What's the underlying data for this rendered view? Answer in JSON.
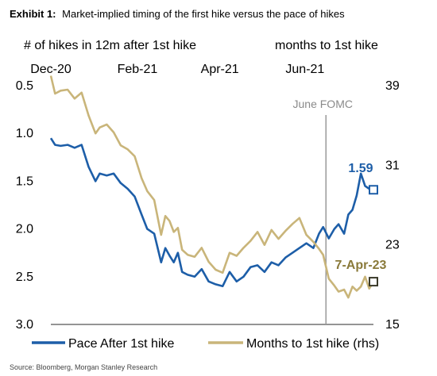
{
  "exhibit_label": "Exhibit 1:",
  "title": "Market-implied timing of the first hike versus the pace of hikes",
  "left_axis_title": "# of hikes in 12m after 1st hike",
  "right_axis_title": "months to 1st hike",
  "source": "Source: Bloomberg, Morgan Stanley Research",
  "chart_data": {
    "type": "line",
    "x_ticks": [
      "Dec-20",
      "Feb-21",
      "Apr-21",
      "Jun-21"
    ],
    "x_tick_dates": [
      "2020-12-01",
      "2021-02-01",
      "2021-04-01",
      "2021-06-01"
    ],
    "xlim": [
      "2020-12-01",
      "2021-07-20"
    ],
    "y_left": {
      "ticks": [
        "0.5",
        "1.0",
        "1.5",
        "2.0",
        "2.5",
        "3.0"
      ],
      "range": [
        0.5,
        3.0
      ],
      "inverted": true
    },
    "y_right": {
      "ticks": [
        "39",
        "31",
        "23",
        "15"
      ],
      "range": [
        15,
        39
      ]
    },
    "vline": {
      "date": "2021-06-16",
      "label": "June FOMC"
    },
    "grid": false,
    "legend_position": "bottom",
    "series": [
      {
        "name": "Pace After 1st hike",
        "axis": "left",
        "color": "#1d5ea8",
        "end_label": "1.59",
        "x": [
          "2020-12-01",
          "2020-12-04",
          "2020-12-08",
          "2020-12-13",
          "2020-12-18",
          "2020-12-23",
          "2020-12-28",
          "2021-01-02",
          "2021-01-05",
          "2021-01-10",
          "2021-01-15",
          "2021-01-20",
          "2021-01-25",
          "2021-01-30",
          "2021-02-04",
          "2021-02-08",
          "2021-02-13",
          "2021-02-18",
          "2021-02-21",
          "2021-02-24",
          "2021-02-27",
          "2021-03-02",
          "2021-03-05",
          "2021-03-09",
          "2021-03-14",
          "2021-03-19",
          "2021-03-24",
          "2021-03-29",
          "2021-04-03",
          "2021-04-08",
          "2021-04-13",
          "2021-04-18",
          "2021-04-23",
          "2021-04-28",
          "2021-05-03",
          "2021-05-08",
          "2021-05-13",
          "2021-05-18",
          "2021-05-23",
          "2021-05-28",
          "2021-06-02",
          "2021-06-07",
          "2021-06-11",
          "2021-06-14",
          "2021-06-18",
          "2021-06-22",
          "2021-06-25",
          "2021-06-29",
          "2021-07-02",
          "2021-07-05",
          "2021-07-08",
          "2021-07-11",
          "2021-07-14",
          "2021-07-17",
          "2021-07-20"
        ],
        "values": [
          1.05,
          1.12,
          1.13,
          1.12,
          1.15,
          1.12,
          1.35,
          1.5,
          1.42,
          1.44,
          1.42,
          1.52,
          1.58,
          1.66,
          1.85,
          2.0,
          2.05,
          2.35,
          2.2,
          2.28,
          2.35,
          2.25,
          2.45,
          2.48,
          2.5,
          2.42,
          2.55,
          2.58,
          2.6,
          2.45,
          2.55,
          2.5,
          2.4,
          2.38,
          2.45,
          2.35,
          2.38,
          2.3,
          2.25,
          2.2,
          2.15,
          2.2,
          2.05,
          1.98,
          2.1,
          2.0,
          1.95,
          2.05,
          1.85,
          1.8,
          1.65,
          1.42,
          1.55,
          1.58,
          1.59
        ]
      },
      {
        "name": "Months to 1st hike (rhs)",
        "axis": "right",
        "color": "#c9b57a",
        "end_label": "7-Apr-23",
        "x": [
          "2020-12-01",
          "2020-12-04",
          "2020-12-08",
          "2020-12-13",
          "2020-12-18",
          "2020-12-23",
          "2020-12-28",
          "2021-01-02",
          "2021-01-05",
          "2021-01-10",
          "2021-01-15",
          "2021-01-20",
          "2021-01-25",
          "2021-01-30",
          "2021-02-04",
          "2021-02-08",
          "2021-02-13",
          "2021-02-18",
          "2021-02-21",
          "2021-02-24",
          "2021-02-27",
          "2021-03-02",
          "2021-03-05",
          "2021-03-09",
          "2021-03-14",
          "2021-03-19",
          "2021-03-24",
          "2021-03-29",
          "2021-04-03",
          "2021-04-08",
          "2021-04-13",
          "2021-04-18",
          "2021-04-23",
          "2021-04-28",
          "2021-05-03",
          "2021-05-08",
          "2021-05-13",
          "2021-05-18",
          "2021-05-23",
          "2021-05-28",
          "2021-06-02",
          "2021-06-07",
          "2021-06-11",
          "2021-06-14",
          "2021-06-18",
          "2021-06-22",
          "2021-06-25",
          "2021-06-29",
          "2021-07-02",
          "2021-07-05",
          "2021-07-08",
          "2021-07-11",
          "2021-07-14",
          "2021-07-17",
          "2021-07-20"
        ],
        "values": [
          40.0,
          38.2,
          38.5,
          38.6,
          37.7,
          38.3,
          36.0,
          34.2,
          34.8,
          35.1,
          34.3,
          33.0,
          32.6,
          31.9,
          29.7,
          28.4,
          27.5,
          24.0,
          25.9,
          25.4,
          24.3,
          24.7,
          22.5,
          22.0,
          21.8,
          22.7,
          21.3,
          20.5,
          20.2,
          22.2,
          21.9,
          22.7,
          23.4,
          24.3,
          23.0,
          24.5,
          23.6,
          24.4,
          25.1,
          25.7,
          24.0,
          23.3,
          22.6,
          22.0,
          19.6,
          18.9,
          18.3,
          18.5,
          17.7,
          18.8,
          18.4,
          18.8,
          19.8,
          18.6,
          19.3
        ]
      }
    ]
  }
}
